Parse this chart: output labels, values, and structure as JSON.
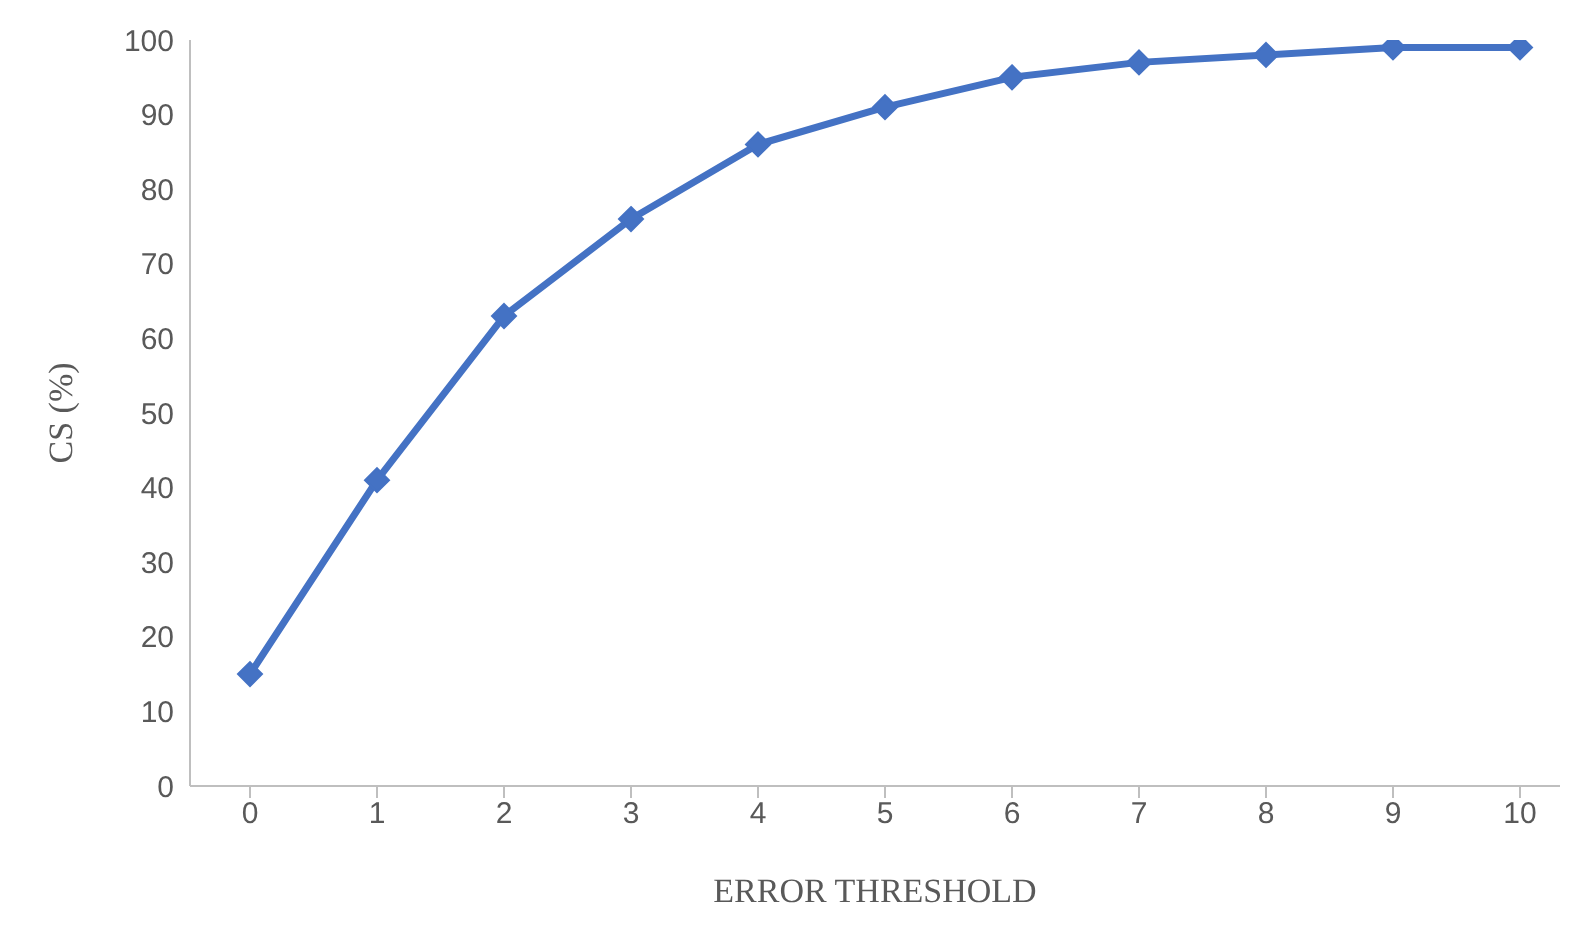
{
  "chart_data": {
    "type": "line",
    "xlabel": "ERROR THRESHOLD",
    "ylabel": "CS (%)",
    "categories": [
      "0",
      "1",
      "2",
      "3",
      "4",
      "5",
      "6",
      "7",
      "8",
      "9",
      "10"
    ],
    "series": [
      {
        "color": "#4472c4",
        "values": [
          15,
          41,
          63,
          76,
          86,
          91,
          95,
          97,
          98,
          99,
          99
        ]
      }
    ],
    "ylim": [
      0,
      100
    ],
    "yticks": [
      0,
      10,
      20,
      30,
      40,
      50,
      60,
      70,
      80,
      90,
      100
    ],
    "grid": false,
    "legend": false,
    "marker": "diamond",
    "line_style": "solid"
  }
}
